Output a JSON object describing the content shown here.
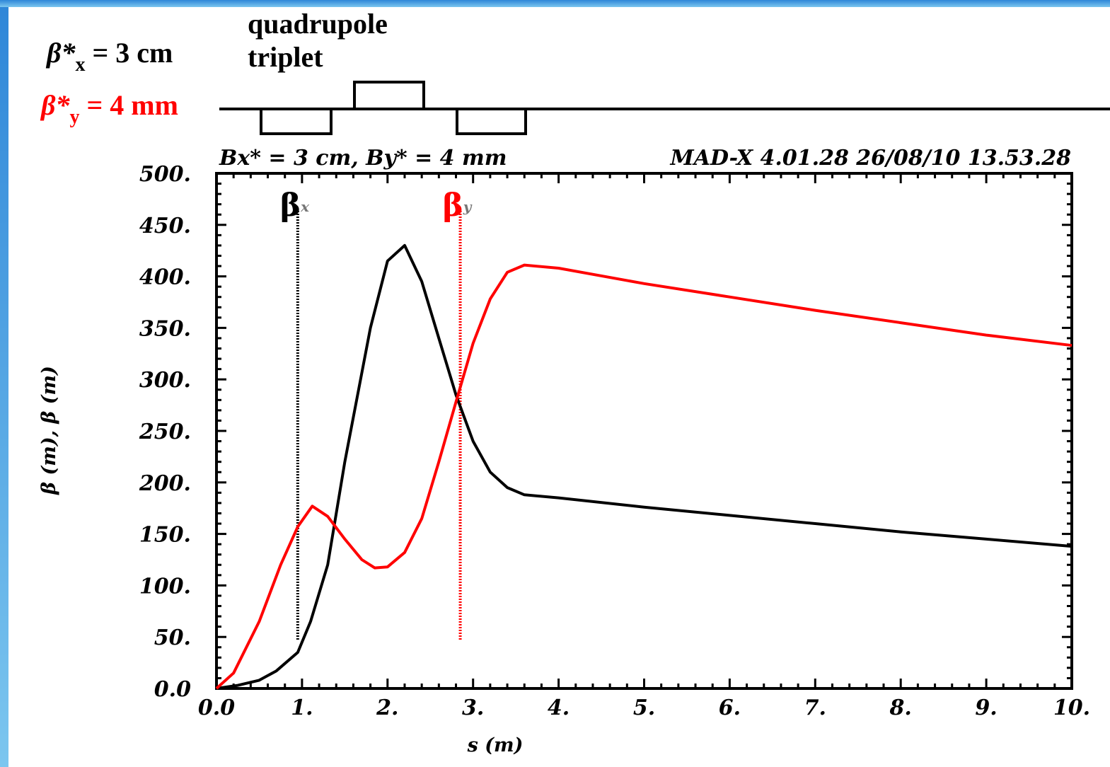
{
  "header": {
    "magnet_label_line1": "quadrupole",
    "magnet_label_line2": "triplet",
    "betax_text": "β*",
    "betax_sub": "x",
    "betax_value": " = 3 cm",
    "betay_text": "β*",
    "betay_sub": "y",
    "betay_value": " = 4 mm"
  },
  "colors": {
    "betax": "#000000",
    "betay": "#ff0000",
    "edge_gradient_top": "#2e86d8",
    "edge_gradient_bottom": "#7cc6ef"
  },
  "chart_data": {
    "type": "line",
    "caption_left": "Bx* = 3 cm, By* = 4 mm",
    "caption_right": "MAD-X 4.01.28  26/08/10 13.53.28",
    "xlabel": "s (m)",
    "ylabel": "β (m), β (m)",
    "xlim": [
      0,
      10
    ],
    "ylim": [
      0,
      500
    ],
    "x_ticks": [
      "0.0",
      "1.",
      "2.",
      "3.",
      "4.",
      "5.",
      "6.",
      "7.",
      "8.",
      "9.",
      "10."
    ],
    "y_ticks": [
      "0.0",
      "50.",
      "100.",
      "150.",
      "200.",
      "250.",
      "300.",
      "350.",
      "400.",
      "450.",
      "500."
    ],
    "grid": false,
    "series": [
      {
        "name": "β",
        "subscript": "x",
        "color": "#000000",
        "label_x": 0.95,
        "points": [
          [
            0,
            0
          ],
          [
            0.25,
            3
          ],
          [
            0.5,
            8
          ],
          [
            0.7,
            17
          ],
          [
            0.95,
            35
          ],
          [
            1.1,
            65
          ],
          [
            1.3,
            120
          ],
          [
            1.5,
            220
          ],
          [
            1.8,
            350
          ],
          [
            2.0,
            415
          ],
          [
            2.2,
            430
          ],
          [
            2.4,
            395
          ],
          [
            2.6,
            340
          ],
          [
            2.8,
            285
          ],
          [
            3.0,
            240
          ],
          [
            3.2,
            210
          ],
          [
            3.4,
            195
          ],
          [
            3.6,
            188
          ],
          [
            4,
            185
          ],
          [
            5,
            176
          ],
          [
            6,
            168
          ],
          [
            7,
            160
          ],
          [
            8,
            152
          ],
          [
            9,
            145
          ],
          [
            10,
            138
          ]
        ]
      },
      {
        "name": "β",
        "subscript": "y",
        "color": "#ff0000",
        "label_x": 2.85,
        "points": [
          [
            0,
            0
          ],
          [
            0.2,
            15
          ],
          [
            0.5,
            65
          ],
          [
            0.75,
            120
          ],
          [
            0.95,
            157
          ],
          [
            1.12,
            177
          ],
          [
            1.3,
            167
          ],
          [
            1.5,
            145
          ],
          [
            1.7,
            125
          ],
          [
            1.85,
            117
          ],
          [
            2.0,
            118
          ],
          [
            2.2,
            132
          ],
          [
            2.4,
            165
          ],
          [
            2.6,
            220
          ],
          [
            2.8,
            278
          ],
          [
            3.0,
            335
          ],
          [
            3.2,
            378
          ],
          [
            3.4,
            404
          ],
          [
            3.6,
            411
          ],
          [
            4,
            408
          ],
          [
            5,
            393
          ],
          [
            6,
            380
          ],
          [
            7,
            367
          ],
          [
            8,
            355
          ],
          [
            9,
            343
          ],
          [
            10,
            333
          ]
        ]
      }
    ]
  }
}
